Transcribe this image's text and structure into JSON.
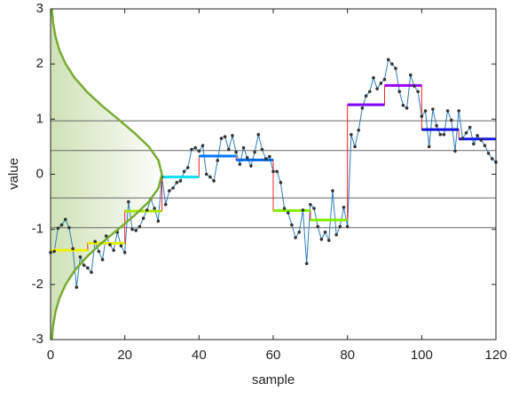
{
  "chart_data": {
    "type": "line",
    "xlabel": "sample",
    "ylabel": "value",
    "xlim": [
      0,
      120
    ],
    "xticks": [
      0,
      20,
      40,
      60,
      80,
      100,
      120
    ],
    "ylim": [
      -3,
      3
    ],
    "yticks": [
      -3,
      -2,
      -1,
      0,
      1,
      2,
      3
    ],
    "grid": false,
    "series": [
      {
        "color": "#2b7bba",
        "marker_color": "#333333",
        "x": [
          0,
          1,
          2,
          3,
          4,
          5,
          6,
          7,
          8,
          9,
          10,
          11,
          12,
          13,
          14,
          15,
          16,
          17,
          18,
          19,
          20,
          21,
          22,
          23,
          24,
          25,
          26,
          27,
          28,
          29,
          30,
          31,
          32,
          33,
          34,
          35,
          36,
          37,
          38,
          39,
          40,
          41,
          42,
          43,
          44,
          45,
          46,
          47,
          48,
          49,
          50,
          51,
          52,
          53,
          54,
          55,
          56,
          57,
          58,
          59,
          60,
          61,
          62,
          63,
          64,
          65,
          66,
          67,
          68,
          69,
          70,
          71,
          72,
          73,
          74,
          75,
          76,
          77,
          78,
          79,
          80,
          81,
          82,
          83,
          84,
          85,
          86,
          87,
          88,
          89,
          90,
          91,
          92,
          93,
          94,
          95,
          96,
          97,
          98,
          99,
          100,
          101,
          102,
          103,
          104,
          105,
          106,
          107,
          108,
          109,
          110,
          111,
          112,
          113,
          114,
          115,
          116,
          117,
          118,
          119,
          120
        ],
        "values": [
          -1.42,
          -1.4,
          -0.98,
          -0.92,
          -0.82,
          -0.97,
          -1.35,
          -2.05,
          -1.5,
          -1.65,
          -1.7,
          -1.78,
          -1.22,
          -1.4,
          -1.55,
          -1.12,
          -1.28,
          -1.38,
          -1.05,
          -1.3,
          -1.42,
          -0.5,
          -1.0,
          -1.02,
          -0.95,
          -0.8,
          -0.65,
          -0.45,
          -0.62,
          -0.85,
          -0.05,
          -0.55,
          -0.3,
          -0.25,
          -0.15,
          -0.12,
          0.05,
          0.12,
          0.45,
          0.48,
          0.42,
          0.52,
          0.0,
          -0.05,
          -0.12,
          0.25,
          0.65,
          0.68,
          0.45,
          0.7,
          0.4,
          0.18,
          0.48,
          0.3,
          0.15,
          0.4,
          0.72,
          0.45,
          0.28,
          0.32,
          0.05,
          0.05,
          -0.15,
          -0.62,
          -0.7,
          -0.92,
          -1.15,
          -1.05,
          -0.65,
          -1.62,
          -0.55,
          -0.62,
          -0.95,
          -1.18,
          -1.05,
          -1.2,
          -0.3,
          -1.1,
          -0.95,
          -0.6,
          -0.95,
          0.72,
          0.5,
          0.8,
          1.2,
          1.42,
          1.5,
          1.75,
          1.55,
          1.65,
          1.72,
          2.08,
          2.0,
          1.92,
          1.5,
          1.25,
          1.2,
          1.8,
          1.6,
          1.5,
          1.05,
          1.15,
          0.5,
          1.18,
          0.88,
          0.72,
          0.72,
          1.15,
          0.98,
          0.42,
          1.15,
          0.65,
          0.75,
          0.85,
          0.55,
          0.7,
          0.62,
          0.52,
          0.38,
          0.28,
          0.22
        ]
      }
    ],
    "steps": {
      "line_color": "#ff2020",
      "edges": [
        0,
        10,
        20,
        30,
        40,
        50,
        60,
        70,
        80,
        90,
        100,
        110,
        120
      ],
      "values": [
        -1.38,
        -1.25,
        -0.67,
        -0.05,
        0.33,
        0.26,
        -0.66,
        -0.83,
        1.26,
        1.61,
        0.81,
        0.64
      ],
      "colors": [
        "#f0f000",
        "#e4ee00",
        "#a8e800",
        "#00e0f0",
        "#0078ff",
        "#0068e0",
        "#80f000",
        "#80f000",
        "#8000ff",
        "#9a00ff",
        "#1010e0",
        "#1818e8"
      ]
    },
    "thresholds": {
      "color": "#666666",
      "values": [
        -0.97,
        -0.43,
        0.43,
        0.97
      ]
    },
    "density": {
      "color": "#77ac30",
      "x": [
        0.33,
        0.68,
        1.32,
        2.38,
        4.06,
        6.47,
        9.74,
        13.73,
        18.2,
        22.58,
        26.47,
        29.08,
        30,
        29.08,
        26.47,
        22.58,
        18.2,
        13.73,
        9.74,
        6.47,
        4.06,
        2.38,
        1.32,
        0.68,
        0.33
      ],
      "y": [
        -3,
        -2.75,
        -2.5,
        -2.25,
        -2,
        -1.75,
        -1.5,
        -1.25,
        -1,
        -0.75,
        -0.5,
        -0.25,
        0,
        0.25,
        0.5,
        0.75,
        1,
        1.25,
        1.5,
        1.75,
        2,
        2.25,
        2.5,
        2.75,
        3
      ]
    }
  }
}
